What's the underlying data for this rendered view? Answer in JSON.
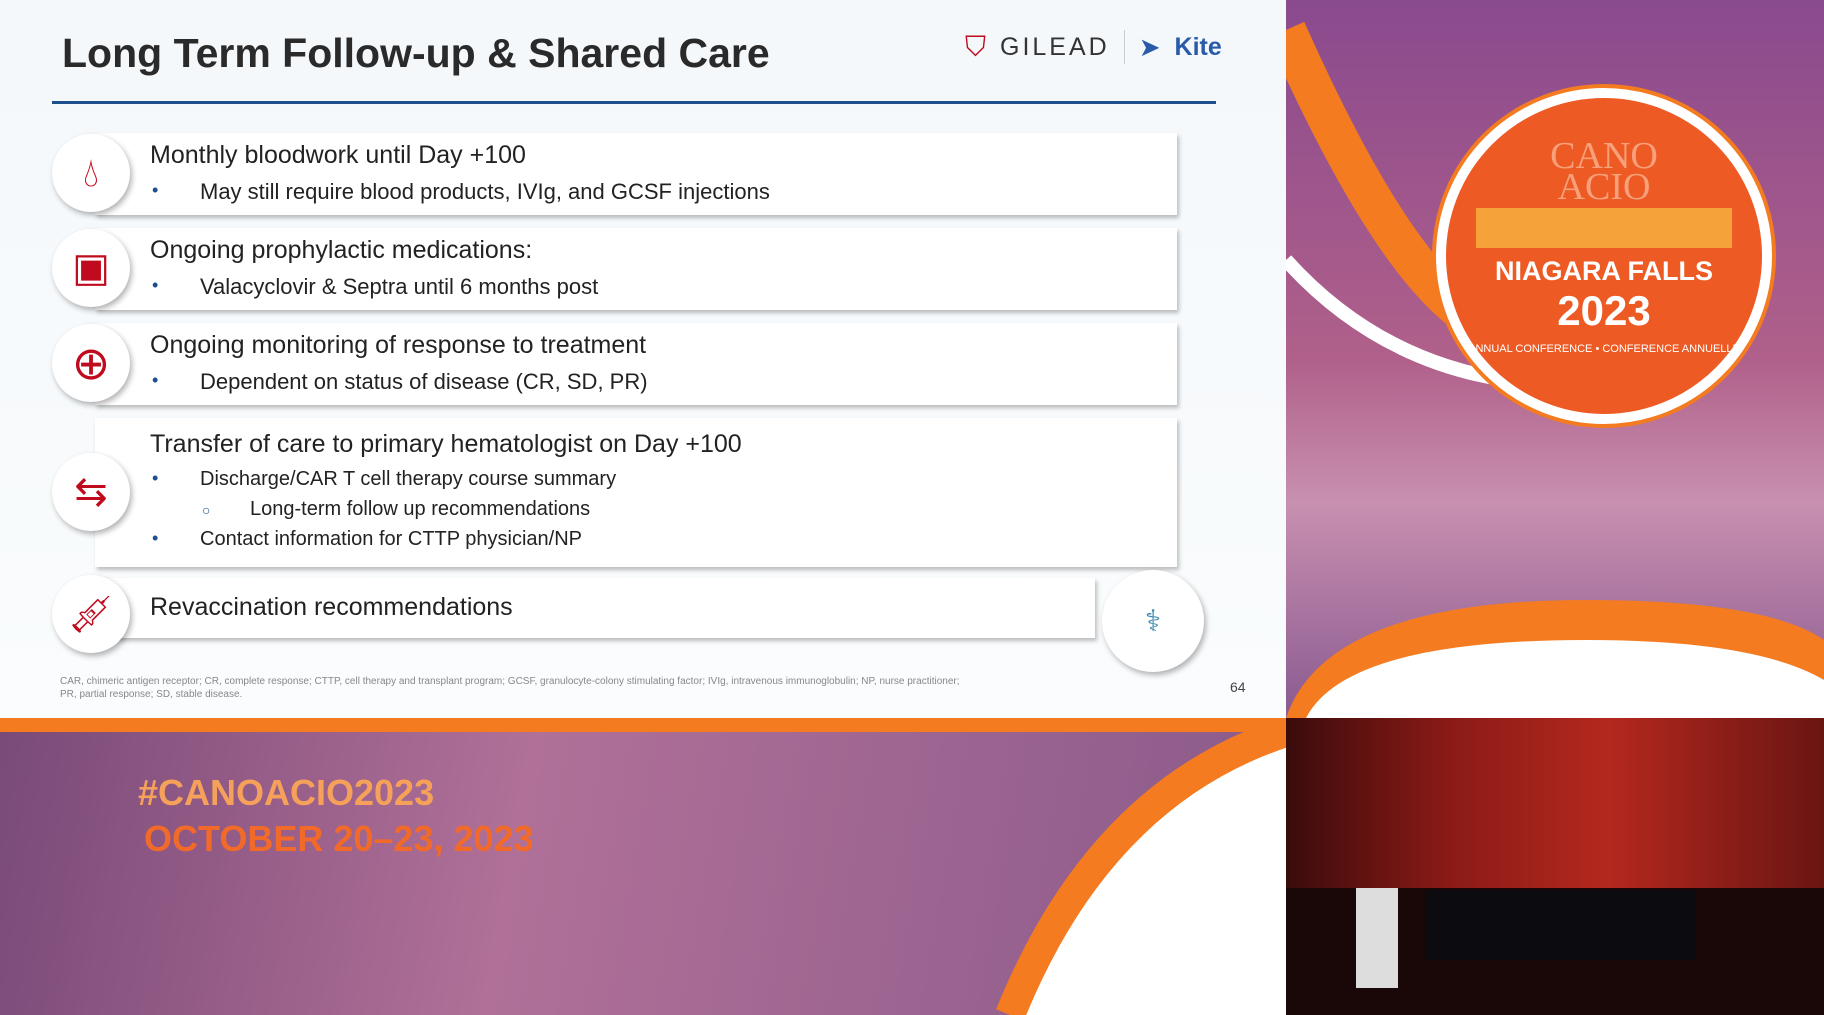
{
  "slide": {
    "title": "Long Term Follow-up & Shared Care",
    "logos": {
      "gilead": "GILEAD",
      "kite": "Kite"
    },
    "items": [
      {
        "icon": "blood-drop-icon",
        "heading": "Monthly bloodwork until Day +100",
        "bullets": [
          "May still require blood products, IVIg, and GCSF injections"
        ]
      },
      {
        "icon": "pill-bottle-icon",
        "heading": "Ongoing prophylactic medications:",
        "bullets": [
          "Valacyclovir & Septra until 6 months post"
        ]
      },
      {
        "icon": "medical-cross-icon",
        "heading": "Ongoing monitoring of response to treatment",
        "bullets": [
          "Dependent on status of disease (CR, SD, PR)"
        ]
      },
      {
        "icon": "transfer-arrows-icon",
        "heading": "Transfer of care to primary hematologist on Day +100",
        "bullets": [
          "Discharge/CAR T cell therapy course summary",
          "Contact information for CTTP physician/NP"
        ],
        "subbullet": "Long-term follow up recommendations"
      },
      {
        "icon": "syringe-icon",
        "heading": "Revaccination recommendations"
      }
    ],
    "footnote": "CAR, chimeric antigen receptor; CR, complete response; CTTP, cell therapy and transplant program; GCSF, granulocyte-colony stimulating factor; IVIg, intravenous immunoglobulin; NP, nurse practitioner; PR, partial response; SD, stable disease.",
    "page_number": "64"
  },
  "conference": {
    "badge_line1": "CANO",
    "badge_line2": "ACIO",
    "location": "NIAGARA FALLS",
    "year": "2023",
    "ring_text": "ANNUAL CONFERENCE • CONFERENCE ANNUELLE",
    "hashtag": "#CANOACIO2023",
    "dates": "OCTOBER 20–23, 2023"
  },
  "colors": {
    "accent_red": "#c00b1e",
    "rule_blue": "#1f4e8c",
    "orange": "#f47b20"
  }
}
